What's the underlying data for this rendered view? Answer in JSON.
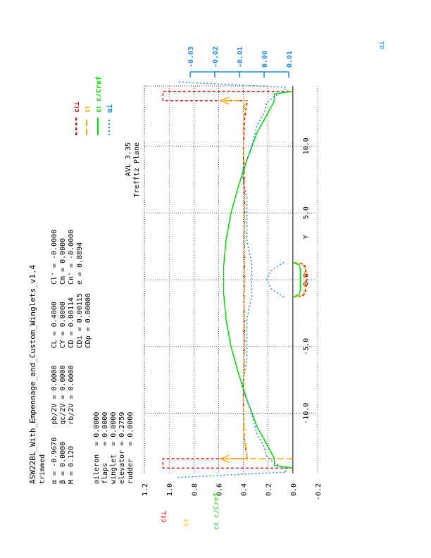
{
  "info": {
    "title": "ASW22BL_With_Empennage_and_Custom_Winglets_v1.4",
    "subtitle": "trimmed",
    "params": [
      "α = -0.9670   pb/2V = 0.0000    CL = 0.4000    Cl' = -0.0000",
      "β = 0.0000    qc/2V = 0.0000    CY = 0.0000    Cm = 0.0000",
      "M = 0.120     rb/2V = 0.0000    CD = 0.00114   Cn' = -0.0000",
      "                                CDi = 0.00115  e = 0.8894",
      "                                CDp = 0.00000"
    ],
    "controls": [
      "aileron  = 0.0000",
      "flaps    = 0.0000",
      "winglet  = 0.0000",
      "elevator = 0.2759",
      "rudder   = 0.0000"
    ],
    "program": "AVL 3.35",
    "plane": "Trefftz Plane"
  },
  "legend": [
    {
      "label": "cℓ⊥",
      "color": "#ee0000",
      "dash": "4,3"
    },
    {
      "label": "cℓ",
      "color": "#ffaa00",
      "dash": "9,4"
    },
    {
      "label": "cℓ c/Cref",
      "color": "#00dd00",
      "dash": ""
    },
    {
      "label": "αi",
      "color": "#1e88e5",
      "dash": "2,3"
    }
  ],
  "chart_data": {
    "type": "line",
    "orientation": "rotated 90° counter-clockwise",
    "x_label": "Y",
    "x_ticks": [
      "-10.0",
      "-5.0",
      "0.0",
      "5.0",
      "10.0"
    ],
    "y_label_left": [
      "cℓ⊥",
      "cℓ",
      "cℓ c/Cref"
    ],
    "y_ticks": [
      "-0.2",
      "0.0",
      "0.2",
      "0.4",
      "0.6",
      "0.8",
      "1.0",
      "1.2"
    ],
    "alpha_label": "αi",
    "alpha_ticks": [
      "0.01",
      "0.00",
      "-0.01",
      "-0.02",
      "-0.03"
    ],
    "xlim": [
      -14.5,
      14.5
    ],
    "ylim": [
      -0.2,
      1.2
    ],
    "alpha_lim": [
      0.01,
      -0.03
    ],
    "series": [
      {
        "name": "cℓ⊥",
        "key": "cl_perp",
        "color": "#ee0000",
        "x": [
          -14.1,
          -14.1,
          -13.4,
          -13.4,
          -12,
          -10,
          -8,
          -6,
          -4,
          -2,
          0,
          2,
          4,
          6,
          8,
          10,
          12,
          13.4,
          13.4,
          14.1,
          14.1
        ],
        "y": [
          0.0,
          1.05,
          1.05,
          0.37,
          0.39,
          0.4,
          0.4,
          0.39,
          0.39,
          0.39,
          0.39,
          0.39,
          0.39,
          0.39,
          0.4,
          0.4,
          0.39,
          0.37,
          1.05,
          1.05,
          0.0
        ]
      },
      {
        "name": "cℓ",
        "key": "cl",
        "color": "#ffaa00",
        "x": [
          -13.4,
          -13.4,
          -13.4,
          -12,
          -10,
          -8,
          -6,
          -4,
          -2,
          0,
          2,
          4,
          6,
          8,
          10,
          12,
          13.4,
          13.4,
          13.4
        ],
        "y": [
          0.0,
          0.55,
          0.37,
          0.39,
          0.4,
          0.4,
          0.39,
          0.39,
          0.39,
          0.39,
          0.39,
          0.39,
          0.39,
          0.39,
          0.4,
          0.4,
          0.39,
          0.37,
          0.55
        ]
      },
      {
        "name": "cℓ c/Cref",
        "key": "cl_cref",
        "color": "#00dd00",
        "x": [
          -14.1,
          -13.9,
          -13.4,
          -12.5,
          -11,
          -9,
          -7,
          -5,
          -3,
          -1,
          0,
          1,
          3,
          5,
          7,
          9,
          11,
          12.5,
          13.4,
          13.9,
          14.1
        ],
        "y": [
          0.0,
          0.15,
          0.15,
          0.2,
          0.29,
          0.37,
          0.44,
          0.5,
          0.54,
          0.56,
          0.56,
          0.56,
          0.54,
          0.5,
          0.44,
          0.37,
          0.29,
          0.2,
          0.15,
          0.15,
          0.0
        ]
      },
      {
        "name": "αi",
        "key": "alpha_i",
        "color": "#1e88e5",
        "x": [
          -14.8,
          -14.4,
          -14.1,
          -13.7,
          -13.2,
          -12.5,
          -11.5,
          -10,
          -9,
          -8,
          -7,
          -6,
          -5,
          -3,
          -2,
          -1.3,
          1.3,
          2,
          3,
          5,
          6,
          7,
          8,
          9,
          10,
          11.5,
          12.5,
          13.2,
          13.7,
          14.1,
          14.4,
          14.8
        ],
        "y": [
          -0.035,
          0.009,
          0.008,
          0.004,
          0.001,
          0.0,
          -0.003,
          -0.005,
          -0.007,
          -0.009,
          -0.008,
          -0.007,
          -0.007,
          -0.007,
          -0.006,
          -0.005,
          -0.005,
          -0.006,
          -0.007,
          -0.007,
          -0.007,
          -0.008,
          -0.009,
          -0.007,
          -0.005,
          -0.003,
          0.0,
          0.001,
          0.004,
          0.008,
          0.009,
          -0.035
        ]
      },
      {
        "name": "αi (tail)",
        "key": "alpha_tail",
        "color": "#1e88e5",
        "x": [
          -1.3,
          -0.7,
          0,
          0.7,
          1.3
        ],
        "y": [
          0.008,
          0.003,
          0.001,
          0.003,
          0.008
        ]
      },
      {
        "name": "tail cℓ⊥",
        "key": "tail_red",
        "color": "#ee0000",
        "x": [
          -1.3,
          -1.2,
          -1.0,
          0,
          1.0,
          1.2,
          1.3
        ],
        "y": [
          0.0,
          -0.08,
          -0.1,
          -0.11,
          -0.1,
          -0.08,
          0.0
        ]
      },
      {
        "name": "tail cℓ",
        "key": "tail_orange",
        "color": "#ffaa00",
        "x": [
          -1.3,
          -1.2,
          -1.0,
          0,
          1.0,
          1.2,
          1.3
        ],
        "y": [
          0.0,
          -0.07,
          -0.09,
          -0.1,
          -0.09,
          -0.07,
          0.0
        ]
      },
      {
        "name": "tail cℓ c/Cref",
        "key": "tail_green",
        "color": "#00dd00",
        "x": [
          -1.3,
          -1.1,
          -0.8,
          0,
          0.8,
          1.1,
          1.3
        ],
        "y": [
          0.0,
          -0.05,
          -0.06,
          -0.06,
          -0.06,
          -0.05,
          0.0
        ]
      }
    ]
  }
}
